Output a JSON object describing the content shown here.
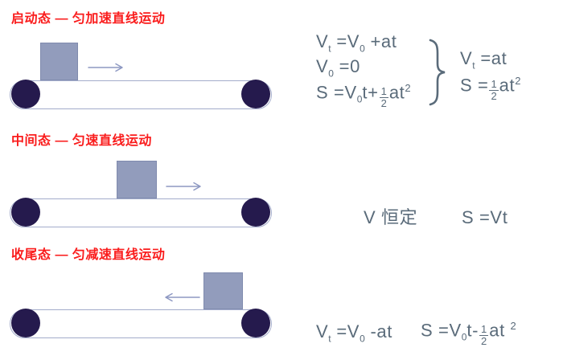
{
  "colors": {
    "title_red": "#fa1c1c",
    "formula_ink": "#5a6b7a",
    "box_fill": "#929cbc",
    "box_border": "#808bae",
    "belt_fill": "#ffffff",
    "belt_border": "#a3accb",
    "wheel": "#251a4d",
    "arrow": "#8d98c2"
  },
  "sections": [
    {
      "title": "启动态 — 匀加速直线运动",
      "arrow_direction": "right",
      "box_position": "left"
    },
    {
      "title": "中间态 — 匀速直线运动",
      "arrow_direction": "right",
      "box_position": "center"
    },
    {
      "title": "收尾态 — 匀减速直线运动",
      "arrow_direction": "left",
      "box_position": "right"
    }
  ],
  "formulas": {
    "accel": {
      "given": [
        [
          {
            "t": "text",
            "v": "V"
          },
          {
            "t": "sub",
            "v": "t"
          },
          {
            "t": "text",
            "v": " ="
          },
          {
            "t": "text",
            "v": "V"
          },
          {
            "t": "sub",
            "v": "0"
          },
          {
            "t": "text",
            "v": " +at"
          }
        ],
        [
          {
            "t": "text",
            "v": "V"
          },
          {
            "t": "sub",
            "v": "0"
          },
          {
            "t": "text",
            "v": " =0"
          }
        ],
        [
          {
            "t": "text",
            "v": "S ="
          },
          {
            "t": "text",
            "v": "V"
          },
          {
            "t": "sub",
            "v": "0"
          },
          {
            "t": "text",
            "v": "t+"
          },
          {
            "t": "frac",
            "num": "1",
            "den": "2"
          },
          {
            "t": "text",
            "v": "at"
          },
          {
            "t": "sup",
            "v": "2"
          }
        ]
      ],
      "result": [
        [
          {
            "t": "text",
            "v": "V"
          },
          {
            "t": "sub",
            "v": "t"
          },
          {
            "t": "text",
            "v": " =at"
          }
        ],
        [
          {
            "t": "text",
            "v": "S ="
          },
          {
            "t": "frac",
            "num": "1",
            "den": "2"
          },
          {
            "t": "text",
            "v": "at"
          },
          {
            "t": "sup",
            "v": "2"
          }
        ]
      ]
    },
    "uniform": {
      "velocity": [
        {
          "t": "text",
          "v": "V 恒定"
        }
      ],
      "distance": [
        {
          "t": "text",
          "v": "S =Vt"
        }
      ]
    },
    "decel": {
      "velocity": [
        {
          "t": "text",
          "v": "V"
        },
        {
          "t": "sub",
          "v": "t"
        },
        {
          "t": "text",
          "v": " ="
        },
        {
          "t": "text",
          "v": "V"
        },
        {
          "t": "sub",
          "v": "0"
        },
        {
          "t": "text",
          "v": " -at"
        }
      ],
      "distance": [
        {
          "t": "text",
          "v": "S ="
        },
        {
          "t": "text",
          "v": "V"
        },
        {
          "t": "sub",
          "v": "0"
        },
        {
          "t": "text",
          "v": "t-"
        },
        {
          "t": "frac",
          "num": "1",
          "den": "2"
        },
        {
          "t": "text",
          "v": "at "
        },
        {
          "t": "sup",
          "v": "2"
        }
      ]
    }
  }
}
